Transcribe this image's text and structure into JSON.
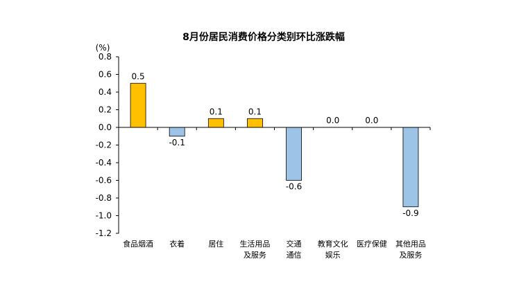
{
  "chart_data": {
    "type": "bar",
    "title": "8月份居民消费价格分类别环比涨跌幅",
    "ylabel": "(%)",
    "xlabel": "",
    "ylim": [
      -1.2,
      0.8
    ],
    "ytick_values": [
      0.8,
      0.6,
      0.4,
      0.2,
      0.0,
      -0.2,
      -0.4,
      -0.6,
      -0.8,
      -1.0,
      -1.2
    ],
    "ytick_labels": [
      "0.8",
      "0.6",
      "0.4",
      "0.2",
      "0.0",
      "-0.2",
      "-0.4",
      "-0.6",
      "-0.8",
      "-1.0",
      "-1.2"
    ],
    "grid": false,
    "categories": [
      [
        "食品烟酒"
      ],
      [
        "衣着"
      ],
      [
        "居住"
      ],
      [
        "生活用品",
        "及服务"
      ],
      [
        "交通",
        "通信"
      ],
      [
        "教育文化",
        "娱乐"
      ],
      [
        "医疗保健"
      ],
      [
        "其他用品",
        "及服务"
      ]
    ],
    "values": [
      0.5,
      -0.1,
      0.1,
      0.1,
      -0.6,
      0.0,
      0.0,
      -0.9
    ],
    "value_labels": [
      "0.5",
      "-0.1",
      "0.1",
      "0.1",
      "-0.6",
      "0.0",
      "0.0",
      "-0.9"
    ],
    "colors": {
      "positive": "#FFC000",
      "negative": "#9DC3E6",
      "bar_stroke": "#000000",
      "axis": "#000000"
    }
  }
}
